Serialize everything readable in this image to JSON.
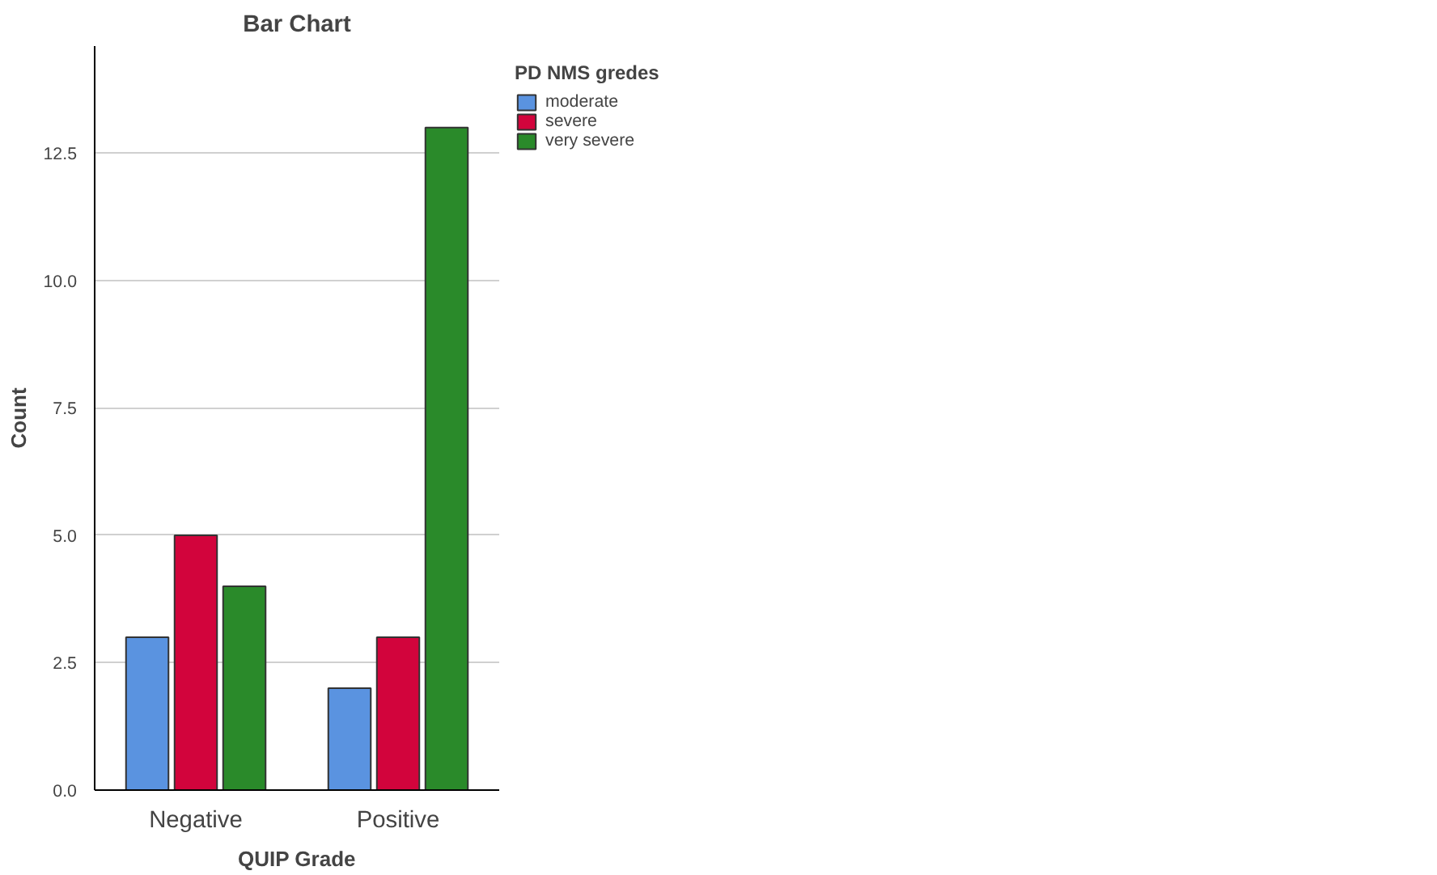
{
  "chart_data": {
    "type": "bar",
    "title": "Bar Chart",
    "xlabel": "QUIP Grade",
    "ylabel": "Count",
    "legend_title": "PD NMS gredes",
    "categories": [
      "Negative",
      "Positive"
    ],
    "series": [
      {
        "name": "moderate",
        "color": "#5a93e0",
        "values": [
          3,
          2
        ]
      },
      {
        "name": "severe",
        "color": "#d2043c",
        "values": [
          5,
          3
        ]
      },
      {
        "name": "very severe",
        "color": "#2a8a2a",
        "values": [
          4,
          13
        ]
      }
    ],
    "ylim": [
      0,
      14.6
    ],
    "yticks": [
      {
        "value": 0,
        "label": "0.0"
      },
      {
        "value": 2.5,
        "label": "2.5"
      },
      {
        "value": 5,
        "label": "5.0"
      },
      {
        "value": 7.5,
        "label": "7.5"
      },
      {
        "value": 10,
        "label": "10.0"
      },
      {
        "value": 12.5,
        "label": "12.5"
      }
    ],
    "grid": "y",
    "legend": "top right"
  }
}
